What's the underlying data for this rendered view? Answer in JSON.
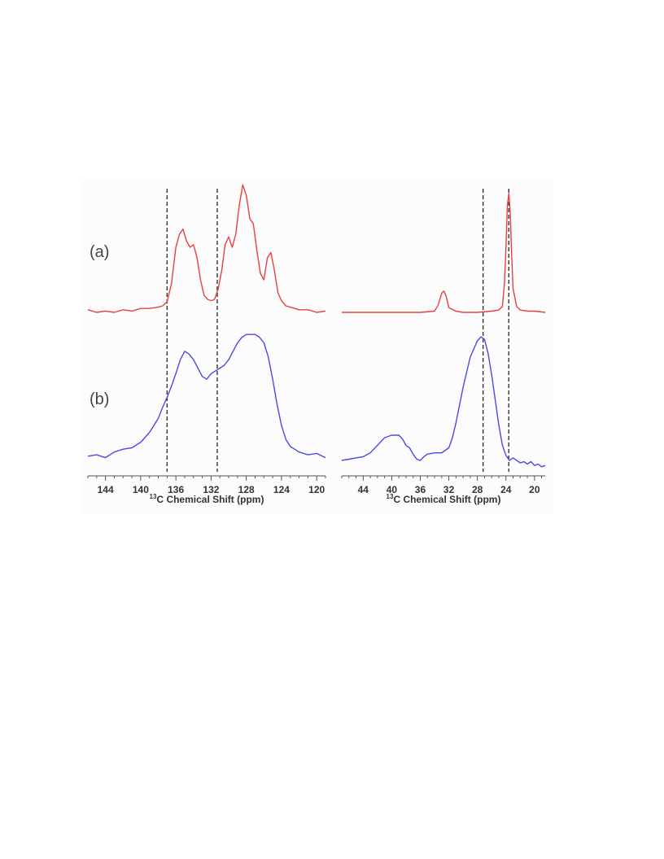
{
  "chart_data": [
    {
      "type": "line",
      "panel": "aromatic",
      "xlabel_prefix": "13",
      "xlabel": "C Chemical Shift (ppm)",
      "xlim": [
        146,
        119
      ],
      "ticks": [
        144,
        140,
        136,
        132,
        128,
        124,
        120
      ],
      "reference_lines": [
        137,
        131.3
      ],
      "series": [
        {
          "label": "(a)",
          "color": "#e8403f",
          "x": [
            146,
            145,
            144,
            143,
            142,
            141,
            140,
            139,
            138,
            137.5,
            137,
            136.5,
            136,
            135.6,
            135.2,
            134.8,
            134.4,
            134,
            133.6,
            133.2,
            132.8,
            132.4,
            132,
            131.6,
            131.2,
            130.8,
            130.4,
            130,
            129.6,
            129.2,
            128.8,
            128.4,
            128,
            127.6,
            127.2,
            126.8,
            126.4,
            126,
            125.6,
            125.2,
            124.8,
            124.4,
            124,
            123.5,
            123,
            122,
            121,
            120,
            119
          ],
          "y": [
            0.02,
            0.0,
            0.01,
            0.0,
            0.02,
            0.01,
            0.03,
            0.03,
            0.04,
            0.05,
            0.08,
            0.22,
            0.5,
            0.6,
            0.64,
            0.55,
            0.5,
            0.52,
            0.42,
            0.25,
            0.13,
            0.1,
            0.09,
            0.1,
            0.18,
            0.32,
            0.52,
            0.58,
            0.5,
            0.6,
            0.82,
            0.98,
            0.9,
            0.72,
            0.68,
            0.48,
            0.3,
            0.25,
            0.42,
            0.46,
            0.32,
            0.15,
            0.09,
            0.05,
            0.04,
            0.02,
            0.02,
            0.0,
            0.01
          ]
        },
        {
          "label": "(b)",
          "color": "#4a4ae6",
          "x": [
            146,
            145,
            144,
            143,
            142,
            141,
            140,
            139,
            138,
            137.5,
            137,
            136.5,
            136,
            135.5,
            135,
            134.5,
            134,
            133.5,
            133,
            132.5,
            132,
            131.5,
            131,
            130.5,
            130,
            129.5,
            129,
            128.5,
            128,
            127.5,
            127,
            126.5,
            126,
            125.5,
            125,
            124.5,
            124,
            123.5,
            123,
            122,
            121,
            120,
            119
          ],
          "y": [
            0.03,
            0.04,
            0.02,
            0.06,
            0.08,
            0.09,
            0.13,
            0.2,
            0.3,
            0.38,
            0.45,
            0.53,
            0.62,
            0.72,
            0.78,
            0.76,
            0.72,
            0.66,
            0.6,
            0.58,
            0.62,
            0.64,
            0.66,
            0.68,
            0.72,
            0.78,
            0.84,
            0.88,
            0.9,
            0.9,
            0.9,
            0.88,
            0.84,
            0.74,
            0.58,
            0.4,
            0.25,
            0.15,
            0.1,
            0.06,
            0.04,
            0.05,
            0.02
          ]
        }
      ]
    },
    {
      "type": "line",
      "panel": "aliphatic",
      "xlabel_prefix": "13",
      "xlabel": "C Chemical Shift (ppm)",
      "xlim": [
        47,
        18.5
      ],
      "ticks": [
        44,
        40,
        36,
        32,
        28,
        24,
        20
      ],
      "reference_lines": [
        27.2,
        23.6
      ],
      "series": [
        {
          "label": "",
          "color": "#e8403f",
          "x": [
            47,
            44,
            40,
            36,
            34,
            33.5,
            33,
            32.7,
            32.4,
            32,
            31,
            30,
            28,
            26,
            25,
            24.5,
            24.2,
            24,
            23.8,
            23.6,
            23.4,
            23.2,
            23,
            22.5,
            22,
            21,
            20,
            18.5
          ],
          "y": [
            0.0,
            0.0,
            0.0,
            0.0,
            0.01,
            0.06,
            0.16,
            0.18,
            0.14,
            0.04,
            0.01,
            0.0,
            0.0,
            0.01,
            0.02,
            0.05,
            0.25,
            0.55,
            0.9,
            1.0,
            0.85,
            0.48,
            0.2,
            0.05,
            0.02,
            0.01,
            0.01,
            0.0
          ]
        },
        {
          "label": "",
          "color": "#4a4ae6",
          "x": [
            47,
            46,
            44,
            43,
            42,
            41,
            40,
            39.5,
            39,
            38.5,
            38,
            37.5,
            37,
            36.5,
            36,
            35.5,
            35,
            34,
            33,
            32,
            31.5,
            31,
            30,
            29,
            28,
            27.5,
            27,
            26.5,
            26,
            25.5,
            25,
            24.5,
            24,
            23.5,
            23,
            22.5,
            22,
            21.5,
            21,
            20.5,
            20,
            19.5,
            19,
            18.5
          ],
          "y": [
            0.0,
            0.01,
            0.03,
            0.06,
            0.12,
            0.18,
            0.2,
            0.2,
            0.2,
            0.17,
            0.12,
            0.1,
            0.05,
            0.01,
            0.0,
            0.03,
            0.05,
            0.06,
            0.06,
            0.1,
            0.18,
            0.3,
            0.58,
            0.82,
            0.95,
            0.98,
            0.96,
            0.85,
            0.68,
            0.48,
            0.28,
            0.12,
            0.04,
            0.0,
            0.02,
            0.0,
            -0.02,
            -0.01,
            -0.03,
            -0.01,
            -0.04,
            -0.03,
            -0.05,
            -0.04
          ]
        }
      ]
    }
  ]
}
